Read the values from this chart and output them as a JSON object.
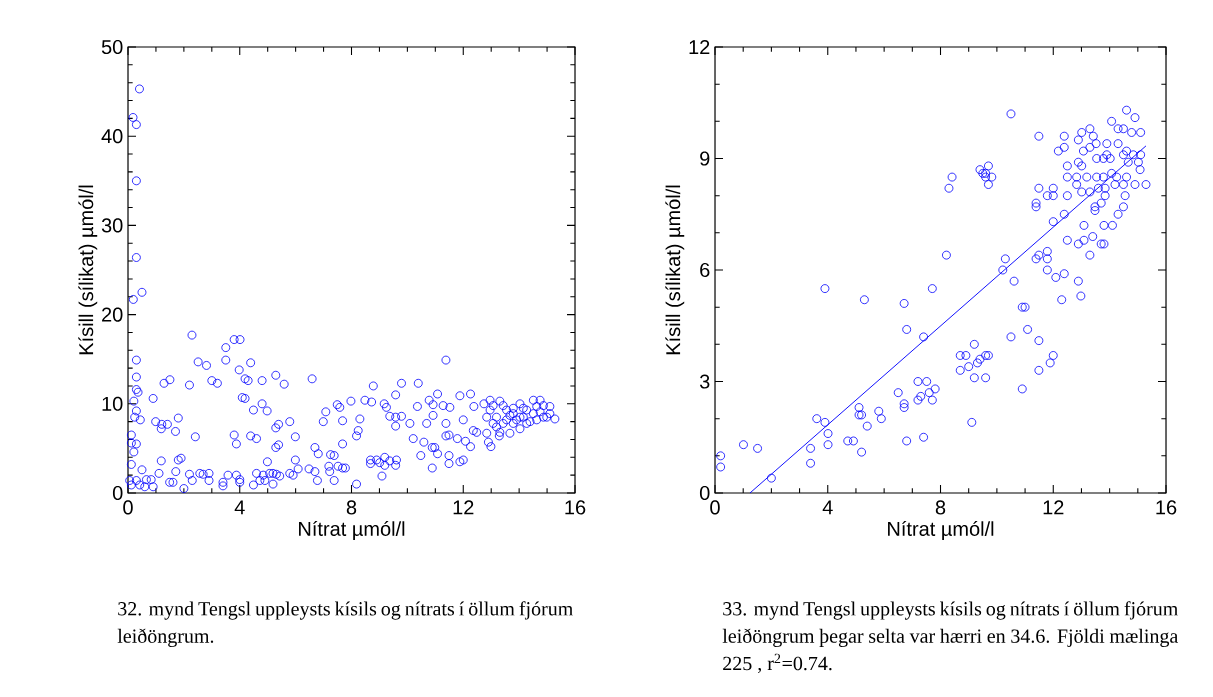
{
  "chart_data": [
    {
      "type": "scatter",
      "xlabel": "Nítrat µmól/l",
      "ylabel": "Kísill (sílikat) µmól/l",
      "xlim": [
        0,
        16
      ],
      "ylim": [
        0,
        50
      ],
      "xticks": [
        0,
        4,
        8,
        12,
        16
      ],
      "yticks": [
        0,
        10,
        20,
        30,
        40,
        50
      ],
      "marker": "circle",
      "annotations": [
        "32. mynd  Tengsl uppleysts kísils og nítrats í öllum fjórum leiðöngrum."
      ],
      "series": [
        {
          "color": "#0000ff",
          "x": [
            0.41,
            0.18,
            0.3,
            0.3,
            0.3,
            0.5,
            0.19,
            2.29,
            3.8,
            4.01,
            3.5,
            3.5,
            2.51,
            2.81,
            0.3,
            11.38,
            4.39,
            3.98,
            0.3,
            5.29,
            6.59,
            1.5,
            1.29,
            2.2,
            3.0,
            3.2,
            4.19,
            4.3,
            4.8,
            5.59,
            9.79,
            10.39,
            8.78,
            0.3,
            0.36,
            4.09,
            4.19,
            9.58,
            11.08,
            11.88,
            12.26,
            0.9,
            4.8,
            4.49,
            4.98,
            0.21,
            0.3,
            7.98,
            8.48,
            8.72,
            7.49,
            7.58,
            7.08,
            9.17,
            9.25,
            10.36,
            10.78,
            10.92,
            11.28,
            11.52,
            12.38,
            12.74,
            0.24,
            0.44,
            0.99,
            1.21,
            1.41,
            1.8,
            1.19,
            1.7,
            2.41,
            6.99,
            7.68,
            5.79,
            5.39,
            5.29,
            8.3,
            8.24,
            8.18,
            9.37,
            9.58,
            9.79,
            9.58,
            10.09,
            10.69,
            10.92,
            11.38,
            12.0,
            12.36,
            12.48,
            3.8,
            3.88,
            4.39,
            4.6,
            5.99,
            5.29,
            5.39,
            7.68,
            6.69,
            6.81,
            7.25,
            7.38,
            10.21,
            10.59,
            10.89,
            10.98,
            11.08,
            10.48,
            11.38,
            11.49,
            11.79,
            12.08,
            12.26,
            12.9,
            12.99,
            13.29,
            11.49,
            11.49,
            11.88,
            12.0,
            10.89,
            0.12,
            0.12,
            0.3,
            0.21,
            0.12,
            0.5,
            1.19,
            1.8,
            1.9,
            1.11,
            0.83,
            0.66,
            0.3,
            0.12,
            0.42,
            0.6,
            0.9,
            0.06,
            1.49,
            1.61,
            1.71,
            2.0,
            2.2,
            2.3,
            2.57,
            2.69,
            2.9,
            2.9,
            3.4,
            3.4,
            3.58,
            3.88,
            4.0,
            4.0,
            4.49,
            4.6,
            4.72,
            4.84,
            4.9,
            4.99,
            5.07,
            5.19,
            5.31,
            5.43,
            5.19,
            5.79,
            5.91,
            5.99,
            6.09,
            6.48,
            6.69,
            6.78,
            7.19,
            7.22,
            7.38,
            7.52,
            7.68,
            7.78,
            8.18,
            8.68,
            8.68,
            8.9,
            9.01,
            9.19,
            9.19,
            9.37,
            9.61,
            9.58,
            9.09,
            12.96,
            13.31,
            12.96,
            13.19,
            13.55,
            13.79,
            14.03,
            14.27,
            14.51,
            14.75,
            14.87,
            15.1,
            15.28,
            14.99,
            14.63,
            14.27,
            14.03,
            13.67,
            13.31,
            12.84,
            13.19,
            13.55,
            13.91,
            14.15,
            14.51,
            14.75,
            12.84,
            13.07,
            13.43,
            13.79,
            14.39,
            14.87,
            15.1,
            13.43,
            13.79,
            14.15,
            14.63,
            13.07,
            14.03,
            13.67
          ],
          "values": [
            45.3,
            42.1,
            41.3,
            35.0,
            26.4,
            22.5,
            21.7,
            17.7,
            17.2,
            17.2,
            16.3,
            14.9,
            14.7,
            14.3,
            14.9,
            14.9,
            14.6,
            13.8,
            13.0,
            13.2,
            12.8,
            12.7,
            12.3,
            12.1,
            12.6,
            12.3,
            12.8,
            12.6,
            12.6,
            12.2,
            12.3,
            12.3,
            12.0,
            11.6,
            11.3,
            10.7,
            10.6,
            11.0,
            11.1,
            10.9,
            11.1,
            10.6,
            10.0,
            9.3,
            9.2,
            10.3,
            9.2,
            10.3,
            10.4,
            10.2,
            9.9,
            9.6,
            9.1,
            10.0,
            9.6,
            9.7,
            10.4,
            9.9,
            9.8,
            9.6,
            9.7,
            10.0,
            8.5,
            8.2,
            8.0,
            7.7,
            7.7,
            8.4,
            7.2,
            6.9,
            6.3,
            8.0,
            8.1,
            8.0,
            7.7,
            7.3,
            8.3,
            7.0,
            6.4,
            8.6,
            8.5,
            8.6,
            7.5,
            7.8,
            7.8,
            8.7,
            7.8,
            8.2,
            7.0,
            6.8,
            6.5,
            5.5,
            6.4,
            6.1,
            6.3,
            5.1,
            5.4,
            5.5,
            5.1,
            4.4,
            4.3,
            4.2,
            6.1,
            5.7,
            5.1,
            5.1,
            4.4,
            4.2,
            6.4,
            6.5,
            6.1,
            5.8,
            5.2,
            5.7,
            5.2,
            6.4,
            4.2,
            3.3,
            3.5,
            3.7,
            2.8,
            6.5,
            5.6,
            5.5,
            4.6,
            3.2,
            2.6,
            3.6,
            3.7,
            3.9,
            2.2,
            1.5,
            1.5,
            1.4,
            0.9,
            0.9,
            0.7,
            0.7,
            1.4,
            1.2,
            1.2,
            2.4,
            0.5,
            2.1,
            1.4,
            2.2,
            2.1,
            2.2,
            1.4,
            1.2,
            0.8,
            2.0,
            2.0,
            1.5,
            1.2,
            0.9,
            2.2,
            1.4,
            2.0,
            1.4,
            3.5,
            2.2,
            2.2,
            2.1,
            1.9,
            1.0,
            2.2,
            2.0,
            3.7,
            2.7,
            2.7,
            2.4,
            1.4,
            3.0,
            2.4,
            1.4,
            3.0,
            2.8,
            2.8,
            1.0,
            3.7,
            3.3,
            3.7,
            3.4,
            4.0,
            3.1,
            3.6,
            3.7,
            3.1,
            1.9,
            10.4,
            10.3,
            9.3,
            8.5,
            9.3,
            8.9,
            10.0,
            9.3,
            10.4,
            10.4,
            9.8,
            9.7,
            8.3,
            8.5,
            8.2,
            7.8,
            7.2,
            6.7,
            6.8,
            6.7,
            7.4,
            8.2,
            8.2,
            8.5,
            8.9,
            9.1,
            8.5,
            7.8,
            7.8,
            7.8,
            8.0,
            8.5,
            8.9,
            9.8,
            9.5,
            9.5,
            9.7,
            9.8,
            8.5,
            8.7
          ]
        }
      ]
    },
    {
      "type": "scatter",
      "xlabel": "Nítrat µmól/l",
      "ylabel": "Kísill (sílikat) µmól/l",
      "xlim": [
        0,
        16
      ],
      "ylim": [
        0,
        12
      ],
      "xticks": [
        0,
        4,
        8,
        12,
        16
      ],
      "yticks": [
        0,
        3,
        6,
        9,
        12
      ],
      "marker": "circle",
      "annotations": [
        "33. mynd Tengsl uppleysts kísils og nítrats í öllum fjórum leiðöngrum þegar selta var hærri en 34.6.  Fjöldi mælinga 225 , r$^{2}$=0.74."
      ],
      "series": [
        {
          "color": "#0000ff",
          "x": [
            0.2,
            0.2,
            1.01,
            1.51,
            2.0,
            3.39,
            3.39,
            3.61,
            3.9,
            4.01,
            4.01,
            3.9,
            4.71,
            4.91,
            5.11,
            5.11,
            5.2,
            5.2,
            5.4,
            5.3,
            5.81,
            5.9,
            6.5,
            6.71,
            6.71,
            6.8,
            6.71,
            6.8,
            7.2,
            7.51,
            7.3,
            7.2,
            7.6,
            7.81,
            7.71,
            7.4,
            7.4,
            7.71,
            8.21,
            8.3,
            8.41,
            8.7,
            8.9,
            8.7,
            9.0,
            9.2,
            9.2,
            9.11,
            9.31,
            9.4,
            9.6,
            9.7,
            9.6,
            9.4,
            9.5,
            9.6,
            9.7,
            9.82,
            9.7,
            9.6,
            10.21,
            10.3,
            10.5,
            10.61,
            10.5,
            10.9,
            11.0,
            11.09,
            10.9,
            11.39,
            11.49,
            11.49,
            11.49,
            11.39,
            11.39,
            11.49,
            11.49,
            11.79,
            11.79,
            11.79,
            11.89,
            12.0,
            11.79,
            12.0,
            12.0,
            12.0,
            12.09,
            12.3,
            12.39,
            12.39,
            12.18,
            12.39,
            12.39,
            12.5,
            12.5,
            12.5,
            12.5,
            12.89,
            12.98,
            12.89,
            13.09,
            13.09,
            13.3,
            13.4,
            13.7,
            13.8,
            13.8,
            14.1,
            13.48,
            13.48,
            13.7,
            14.3,
            14.49,
            12.89,
            13.01,
            13.3,
            13.42,
            13.52,
            13.3,
            13.07,
            12.89,
            13.01,
            12.83,
            12.83,
            13.01,
            13.19,
            13.3,
            13.54,
            13.6,
            13.54,
            13.78,
            13.9,
            13.9,
            14.02,
            13.78,
            13.84,
            13.84,
            14.07,
            14.19,
            14.25,
            14.07,
            14.3,
            14.49,
            14.6,
            14.9,
            14.78,
            15.1,
            14.3,
            14.49,
            14.6,
            14.84,
            15.1,
            15.08,
            14.6,
            14.55,
            14.9,
            15.29,
            14.49,
            14.66,
            15.02
          ],
          "values": [
            1.0,
            0.7,
            1.3,
            1.2,
            0.4,
            1.2,
            0.8,
            2.0,
            1.9,
            1.6,
            1.3,
            5.5,
            1.4,
            1.4,
            2.3,
            2.1,
            2.1,
            1.1,
            1.8,
            5.2,
            2.2,
            2.0,
            2.7,
            2.4,
            2.3,
            1.4,
            5.1,
            4.4,
            3.0,
            3.0,
            2.6,
            2.5,
            2.7,
            2.8,
            2.5,
            4.2,
            1.5,
            5.5,
            6.4,
            8.2,
            8.5,
            3.7,
            3.7,
            3.3,
            3.4,
            4.0,
            3.1,
            1.9,
            3.5,
            3.6,
            3.7,
            3.7,
            3.1,
            8.7,
            8.6,
            8.5,
            8.8,
            8.5,
            8.3,
            8.6,
            6.0,
            6.3,
            10.2,
            5.7,
            4.2,
            5.0,
            5.0,
            4.4,
            2.8,
            6.3,
            6.4,
            4.1,
            3.3,
            7.8,
            7.7,
            8.2,
            9.6,
            6.5,
            6.3,
            6.0,
            3.5,
            3.7,
            8.0,
            8.0,
            8.2,
            7.3,
            5.8,
            5.2,
            5.9,
            7.5,
            9.2,
            9.3,
            9.6,
            6.8,
            8.0,
            8.8,
            8.5,
            5.7,
            5.3,
            6.7,
            6.8,
            7.2,
            6.4,
            6.9,
            6.7,
            6.7,
            7.2,
            7.2,
            7.7,
            7.6,
            7.8,
            7.5,
            7.7,
            9.5,
            9.7,
            9.8,
            9.6,
            9.4,
            9.3,
            9.2,
            8.9,
            8.8,
            8.5,
            8.3,
            8.1,
            8.5,
            8.1,
            8.5,
            8.2,
            9.0,
            9.0,
            9.4,
            9.1,
            9.0,
            8.5,
            8.2,
            8.0,
            8.6,
            8.3,
            8.5,
            10.0,
            9.8,
            9.8,
            10.3,
            10.1,
            9.7,
            9.7,
            9.4,
            9.1,
            9.2,
            9.1,
            9.1,
            8.7,
            8.5,
            8.0,
            8.3,
            8.3,
            8.3,
            8.9,
            8.9
          ]
        },
        {
          "type": "line",
          "marker": "none",
          "color": "#0000ff",
          "x": [
            1.24,
            15.29
          ],
          "values": [
            0,
            9.34
          ]
        }
      ]
    }
  ]
}
